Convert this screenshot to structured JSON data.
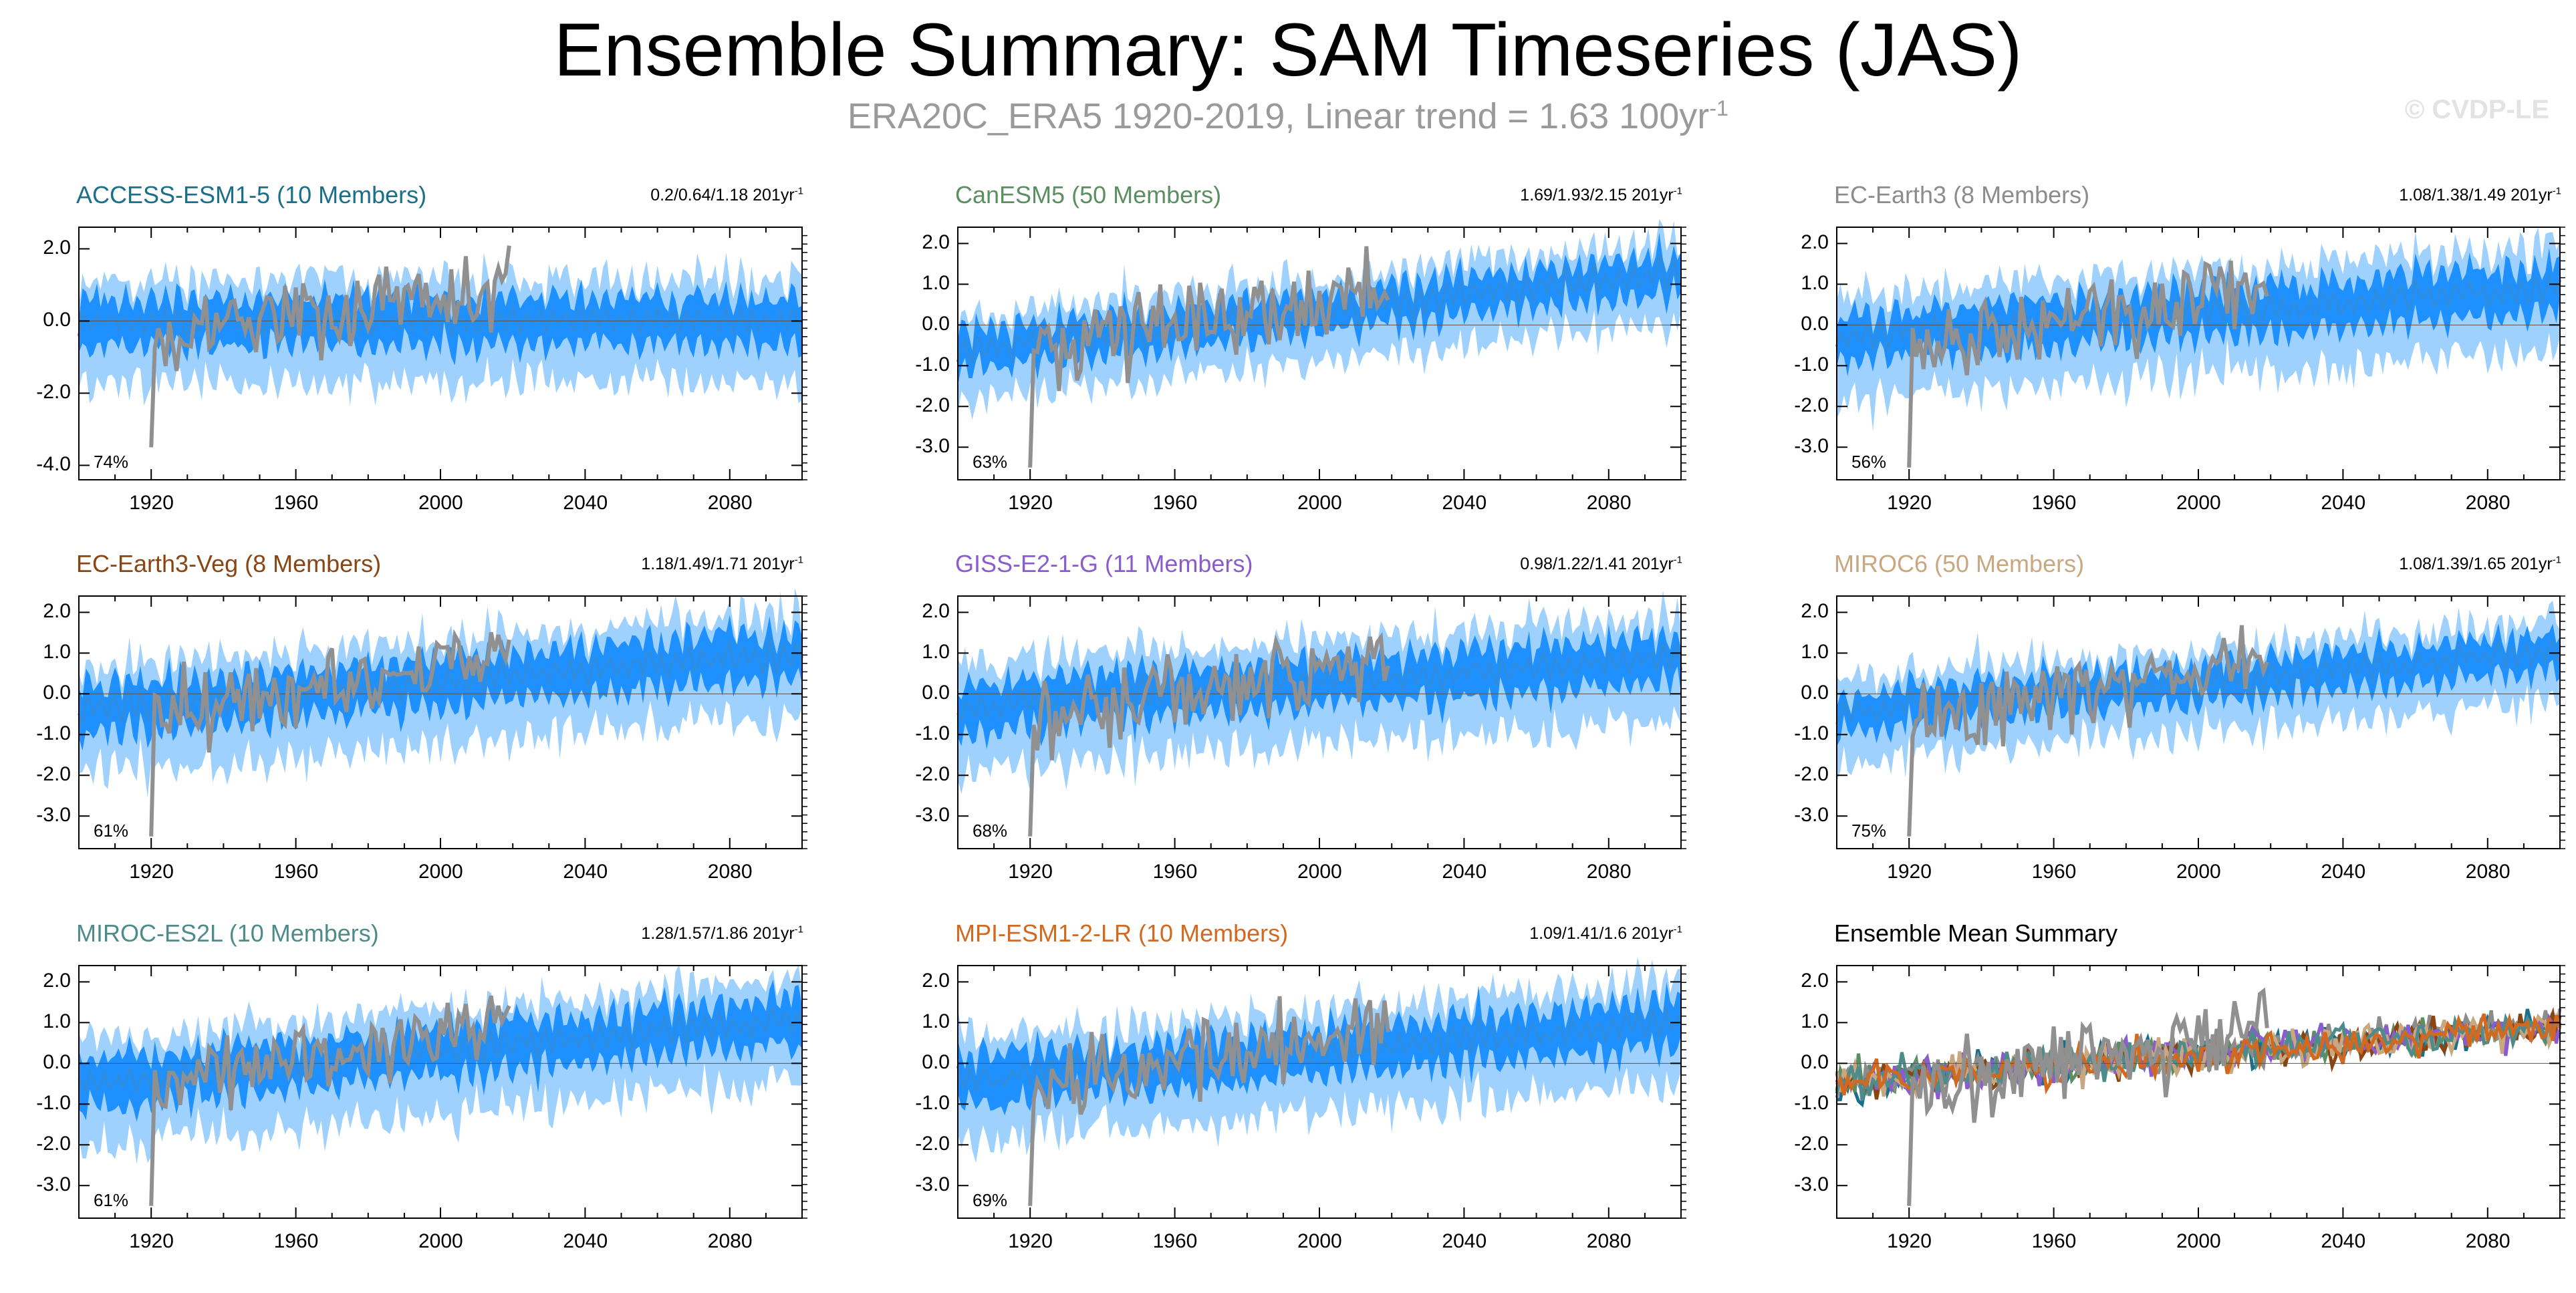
{
  "title": "Ensemble Summary: SAM Timeseries (JAS)",
  "subtitle": {
    "text": "ERA20C_ERA5 1920-2019, Linear trend = 1.63 100yr",
    "sup": "-1"
  },
  "copyright": "© CVDP-LE",
  "colors": {
    "obs": "#909090",
    "mean": "#2f8de0",
    "inner": "#1e90ff",
    "outer": "#9fd1ff"
  },
  "chart_data": [
    {
      "type": "line",
      "name": "ACCESS-ESM1-5 (10 Members)",
      "title_color": "#1a6f8a",
      "trend": "0.2/0.64/1.18 201yr",
      "trend_sup": "-1",
      "pct": "74%",
      "yticks": [
        "2.0",
        "0.0",
        "-2.0",
        "-4.0"
      ],
      "ylim": [
        -4.4,
        2.6
      ],
      "xticks": [
        "1920",
        "1960",
        "2000",
        "2040",
        "2080"
      ],
      "xlim": [
        1900,
        2100
      ],
      "offset": 0.0,
      "slope": 0.0,
      "amp": 1.0,
      "seed": 11
    },
    {
      "type": "line",
      "name": "CanESM5 (50 Members)",
      "title_color": "#5b8f62",
      "trend": "1.69/1.93/2.15 201yr",
      "trend_sup": "-1",
      "pct": "63%",
      "yticks": [
        "2.0",
        "1.0",
        "0.0",
        "-1.0",
        "-2.0",
        "-3.0"
      ],
      "ylim": [
        -3.8,
        2.4
      ],
      "xticks": [
        "1920",
        "1960",
        "2000",
        "2040",
        "2080"
      ],
      "xlim": [
        1900,
        2100
      ],
      "offset": -0.6,
      "slope": 1.9,
      "amp": 0.7,
      "seed": 23
    },
    {
      "type": "line",
      "name": "EC-Earth3 (8 Members)",
      "title_color": "#8c8c8c",
      "trend": "1.08/1.38/1.49 201yr",
      "trend_sup": "-1",
      "pct": "56%",
      "yticks": [
        "2.0",
        "1.0",
        "0.0",
        "-1.0",
        "-2.0",
        "-3.0"
      ],
      "ylim": [
        -3.8,
        2.4
      ],
      "xticks": [
        "1920",
        "1960",
        "2000",
        "2040",
        "2080"
      ],
      "xlim": [
        1900,
        2100
      ],
      "offset": -0.3,
      "slope": 1.2,
      "amp": 0.9,
      "seed": 37
    },
    {
      "type": "line",
      "name": "EC-Earth3-Veg (8 Members)",
      "title_color": "#8a4513",
      "trend": "1.18/1.49/1.71 201yr",
      "trend_sup": "-1",
      "pct": "61%",
      "yticks": [
        "2.0",
        "1.0",
        "0.0",
        "-1.0",
        "-2.0",
        "-3.0"
      ],
      "ylim": [
        -3.8,
        2.4
      ],
      "xticks": [
        "1920",
        "1960",
        "2000",
        "2040",
        "2080"
      ],
      "xlim": [
        1900,
        2100
      ],
      "offset": -0.4,
      "slope": 1.4,
      "amp": 0.9,
      "seed": 41
    },
    {
      "type": "line",
      "name": "GISS-E2-1-G (11 Members)",
      "title_color": "#8a5ccf",
      "trend": "0.98/1.22/1.41 201yr",
      "trend_sup": "-1",
      "pct": "68%",
      "yticks": [
        "2.0",
        "1.0",
        "0.0",
        "-1.0",
        "-2.0",
        "-3.0"
      ],
      "ylim": [
        -3.8,
        2.4
      ],
      "xticks": [
        "1920",
        "1960",
        "2000",
        "2040",
        "2080"
      ],
      "xlim": [
        1900,
        2100
      ],
      "offset": -0.3,
      "slope": 1.2,
      "amp": 0.9,
      "seed": 53
    },
    {
      "type": "line",
      "name": "MIROC6 (50 Members)",
      "title_color": "#c9a880",
      "trend": "1.08/1.39/1.65 201yr",
      "trend_sup": "-1",
      "pct": "75%",
      "yticks": [
        "2.0",
        "1.0",
        "0.0",
        "-1.0",
        "-2.0",
        "-3.0"
      ],
      "ylim": [
        -3.8,
        2.4
      ],
      "xticks": [
        "1920",
        "1960",
        "2000",
        "2040",
        "2080"
      ],
      "xlim": [
        1900,
        2100
      ],
      "offset": -0.4,
      "slope": 1.4,
      "amp": 0.7,
      "seed": 67
    },
    {
      "type": "line",
      "name": "MIROC-ES2L (10 Members)",
      "title_color": "#4e8c8c",
      "trend": "1.28/1.57/1.86 201yr",
      "trend_sup": "-1",
      "pct": "61%",
      "yticks": [
        "2.0",
        "1.0",
        "0.0",
        "-1.0",
        "-2.0",
        "-3.0"
      ],
      "ylim": [
        -3.8,
        2.4
      ],
      "xticks": [
        "1920",
        "1960",
        "2000",
        "2040",
        "2080"
      ],
      "xlim": [
        1900,
        2100
      ],
      "offset": -0.5,
      "slope": 1.6,
      "amp": 0.9,
      "seed": 71
    },
    {
      "type": "line",
      "name": "MPI-ESM1-2-LR (10 Members)",
      "title_color": "#d2691e",
      "trend": "1.09/1.41/1.6 201yr",
      "trend_sup": "-1",
      "pct": "69%",
      "yticks": [
        "2.0",
        "1.0",
        "0.0",
        "-1.0",
        "-2.0",
        "-3.0"
      ],
      "ylim": [
        -3.8,
        2.4
      ],
      "xticks": [
        "1920",
        "1960",
        "2000",
        "2040",
        "2080"
      ],
      "xlim": [
        1900,
        2100
      ],
      "offset": -0.4,
      "slope": 1.4,
      "amp": 0.9,
      "seed": 83
    },
    {
      "type": "line",
      "name": "Ensemble Mean Summary",
      "title_color": "#000000",
      "summary": true,
      "yticks": [
        "2.0",
        "1.0",
        "0.0",
        "-1.0",
        "-2.0",
        "-3.0"
      ],
      "ylim": [
        -3.8,
        2.4
      ],
      "xticks": [
        "1920",
        "1960",
        "2000",
        "2040",
        "2080"
      ],
      "xlim": [
        1900,
        2100
      ],
      "series_colors": [
        "#1a6f8a",
        "#5b8f62",
        "#8c8c8c",
        "#8a4513",
        "#8a5ccf",
        "#c9a880",
        "#4e8c8c",
        "#d2691e"
      ],
      "seed": 97
    }
  ]
}
